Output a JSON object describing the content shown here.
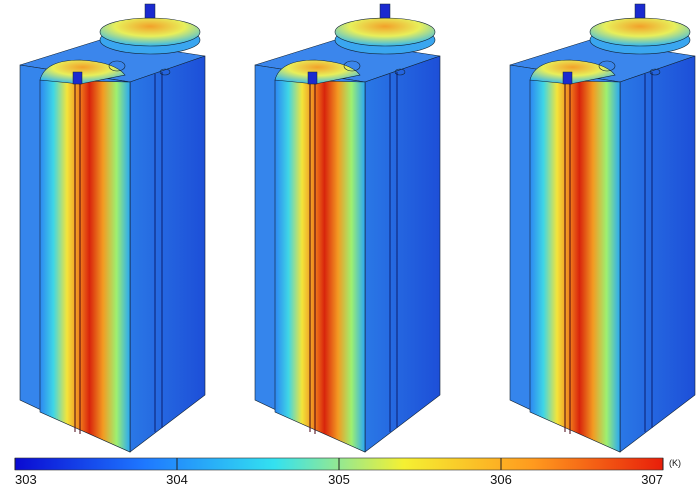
{
  "chart_data": {
    "type": "colorbar",
    "unit": "(K)",
    "clim": [
      303,
      307
    ],
    "cticks": [
      303,
      304,
      305,
      306,
      307
    ],
    "colormap": [
      "#0a0ad2",
      "#1e78ff",
      "#33e1f0",
      "#f5f032",
      "#ff9a1e",
      "#e81e0a"
    ]
  }
}
